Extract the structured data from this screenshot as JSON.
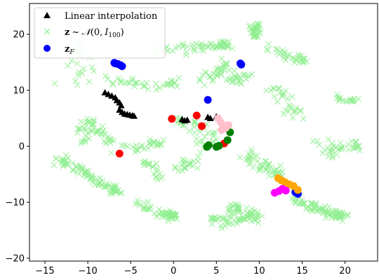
{
  "chart_data": {
    "type": "scatter",
    "title": "",
    "xlabel": "",
    "ylabel": "",
    "xlim": [
      -16.8,
      23.8
    ],
    "ylim": [
      -20.5,
      25.5
    ],
    "xticks": [
      -15,
      -10,
      -5,
      0,
      5,
      10,
      15,
      20
    ],
    "yticks": [
      -20,
      -10,
      0,
      10,
      20
    ],
    "grid": false,
    "legend_position": "top-left",
    "legend": [
      {
        "label": "Linear interpolation",
        "marker": "triangle",
        "color": "#000000"
      },
      {
        "label": "z ~ N(0, I100)",
        "marker": "x",
        "color": "#90ee90"
      },
      {
        "label": "zF",
        "marker": "circle",
        "color": "#0000ff"
      }
    ],
    "background_regions": [
      {
        "points": [
          [
            -13.5,
            -2.5
          ],
          [
            -12.5,
            -2.8
          ],
          [
            -11.5,
            -3.5
          ],
          [
            -10.5,
            -4.5
          ],
          [
            -9.5,
            -5.5
          ],
          [
            -8.5,
            -6.5
          ],
          [
            -7.5,
            -7.5
          ],
          [
            -6.5,
            -8
          ]
        ],
        "spread": 0.9,
        "count": 90
      },
      {
        "points": [
          [
            -10.5,
            0.5
          ],
          [
            -10.5,
            2.5
          ],
          [
            -10,
            4.5
          ],
          [
            -9,
            3
          ],
          [
            -8,
            1.5
          ],
          [
            -6,
            0
          ],
          [
            -4,
            -0.5
          ],
          [
            -2,
            0.5
          ]
        ],
        "spread": 1.1,
        "count": 80
      },
      {
        "points": [
          [
            -8,
            12
          ],
          [
            -6,
            11.5
          ],
          [
            -4,
            11
          ],
          [
            -2,
            10.5
          ],
          [
            0,
            11
          ]
        ],
        "spread": 1.0,
        "count": 40
      },
      {
        "points": [
          [
            -2,
            17
          ],
          [
            0,
            17.5
          ],
          [
            2,
            17.5
          ],
          [
            4,
            18
          ],
          [
            6,
            18
          ]
        ],
        "spread": 0.8,
        "count": 60
      },
      {
        "points": [
          [
            4,
            12
          ],
          [
            5,
            13
          ],
          [
            6,
            14.5
          ],
          [
            7,
            11.5
          ],
          [
            8,
            12
          ]
        ],
        "spread": 1.3,
        "count": 60
      },
      {
        "points": [
          [
            9,
            21
          ],
          [
            10,
            21.5
          ],
          [
            9.5,
            20
          ]
        ],
        "spread": 0.7,
        "count": 40
      },
      {
        "points": [
          [
            11,
            17.5
          ],
          [
            12.5,
            17
          ],
          [
            14,
            16
          ],
          [
            15,
            15.5
          ]
        ],
        "spread": 0.8,
        "count": 35
      },
      {
        "points": [
          [
            -4.5,
            -10
          ],
          [
            -3,
            -11
          ],
          [
            -1.5,
            -12
          ],
          [
            0,
            -12.5
          ]
        ],
        "spread": 0.9,
        "count": 60
      },
      {
        "points": [
          [
            4,
            -13
          ],
          [
            6,
            -13.5
          ],
          [
            8,
            -13
          ],
          [
            10,
            -12.5
          ],
          [
            7,
            -11
          ]
        ],
        "spread": 1.0,
        "count": 90
      },
      {
        "points": [
          [
            14,
            -9
          ],
          [
            15,
            -10
          ],
          [
            16.5,
            -11
          ],
          [
            18,
            -12
          ],
          [
            19.5,
            -12.5
          ]
        ],
        "spread": 0.9,
        "count": 90
      },
      {
        "points": [
          [
            17,
            1
          ],
          [
            18.5,
            -1
          ],
          [
            20,
            0
          ],
          [
            21.5,
            0
          ]
        ],
        "spread": 1.0,
        "count": 40
      },
      {
        "points": [
          [
            19,
            9
          ],
          [
            20,
            8.5
          ],
          [
            21,
            8
          ]
        ],
        "spread": 0.7,
        "count": 20
      },
      {
        "points": [
          [
            8,
            -1
          ],
          [
            9,
            -2
          ],
          [
            10,
            -3
          ],
          [
            11,
            -4
          ],
          [
            12,
            -5
          ]
        ],
        "spread": 1.1,
        "count": 50
      },
      {
        "points": [
          [
            0,
            5
          ],
          [
            2,
            4
          ],
          [
            4,
            2
          ],
          [
            3,
            -2
          ],
          [
            1,
            -4
          ]
        ],
        "spread": 1.6,
        "count": 60
      },
      {
        "points": [
          [
            13,
            7
          ],
          [
            14,
            6
          ],
          [
            15,
            5.5
          ],
          [
            12,
            10
          ]
        ],
        "spread": 1.3,
        "count": 30
      },
      {
        "points": [
          [
            -12,
            13
          ],
          [
            -10,
            12
          ],
          [
            -11,
            17
          ]
        ],
        "spread": 1.8,
        "count": 20
      },
      {
        "points": [
          [
            -2,
            -6
          ],
          [
            -1,
            -5
          ],
          [
            -3,
            -3
          ]
        ],
        "spread": 1.0,
        "count": 20
      }
    ],
    "series": [
      {
        "marker": "triangle",
        "color": "#000000",
        "x": [
          -8,
          -7.6,
          -7.2,
          -6.8,
          -6.6,
          -6.3,
          -6.1,
          -6.3,
          -6.0,
          -5.7,
          -5.4,
          -5.1,
          -4.8,
          -4.6,
          1.0,
          1.3,
          1.6,
          4.0,
          4.3,
          5.0,
          5.3
        ],
        "y": [
          9.6,
          9.3,
          9.0,
          8.7,
          8.2,
          7.8,
          7.3,
          6.5,
          6.1,
          5.8,
          5.7,
          5.6,
          5.5,
          5.4,
          4.8,
          4.6,
          4.7,
          5.2,
          5.0,
          5.3,
          5.1
        ]
      },
      {
        "marker": "circle",
        "color": "#0000ff",
        "x": [
          -6.9,
          -6.5,
          -6.2,
          -6.0,
          -6.8,
          7.8,
          7.9,
          4.0,
          14.2,
          14.5
        ],
        "y": [
          14.9,
          14.7,
          14.5,
          14.3,
          14.8,
          14.8,
          14.6,
          8.3,
          -8.2,
          -8.5
        ]
      },
      {
        "marker": "circle",
        "color": "#ff0000",
        "x": [
          -6.3,
          -0.2,
          2.7,
          3.3,
          5.9
        ],
        "y": [
          -1.3,
          4.9,
          5.5,
          3.6,
          0.5
        ]
      },
      {
        "marker": "circle",
        "color": "#008000",
        "x": [
          3.9,
          4.1,
          5.0,
          5.3,
          6.3,
          6.6
        ],
        "y": [
          -0.1,
          0.2,
          -0.1,
          0.1,
          1.1,
          2.5
        ]
      },
      {
        "marker": "circle",
        "color": "#ffc0cb",
        "x": [
          5.2,
          5.5,
          5.8,
          6.1,
          6.4,
          5.6
        ],
        "y": [
          5.0,
          4.3,
          3.7,
          3.3,
          3.8,
          2.9
        ]
      },
      {
        "marker": "circle",
        "color": "#ffa500",
        "x": [
          12.2,
          12.6,
          13.0,
          13.5,
          14.0,
          14.5
        ],
        "y": [
          -5.7,
          -6.1,
          -6.4,
          -6.8,
          -7.1,
          -7.8
        ]
      },
      {
        "marker": "circle",
        "color": "#ff00ff",
        "x": [
          11.8,
          12.3,
          12.7,
          13.1
        ],
        "y": [
          -8.3,
          -8.0,
          -7.6,
          -7.9
        ]
      }
    ]
  }
}
